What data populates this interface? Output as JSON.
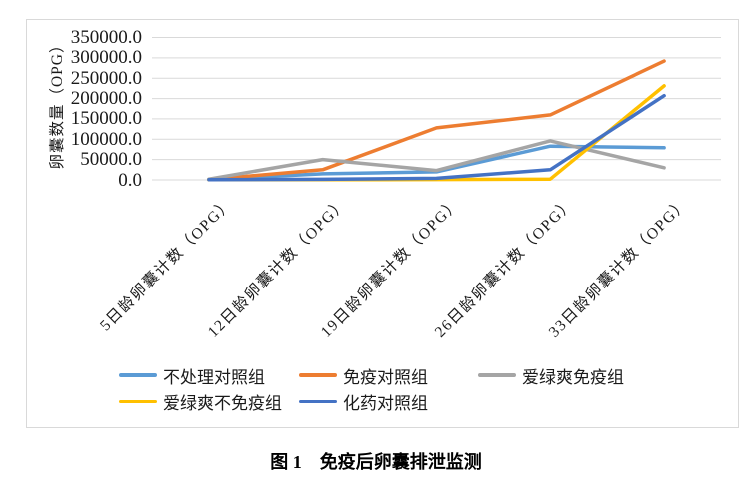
{
  "chart_data": {
    "type": "line",
    "categories": [
      "5日龄卵囊计数（OPG）",
      "12日龄卵囊计数（OPG）",
      "19日龄卵囊计数（OPG）",
      "26日龄卵囊计数（OPG）",
      "33日龄卵囊计数（OPG）"
    ],
    "series": [
      {
        "name": "不处理对照组",
        "color": "#5B9BD5",
        "values": [
          1000,
          15000,
          20000,
          83000,
          79000
        ]
      },
      {
        "name": "免疫对照组",
        "color": "#ED7D31",
        "values": [
          1000,
          25000,
          128000,
          160000,
          292000
        ]
      },
      {
        "name": "爱绿爽免疫组",
        "color": "#A5A5A5",
        "values": [
          2000,
          50000,
          23000,
          96000,
          30000
        ]
      },
      {
        "name": "爱绿爽不免疫组",
        "color": "#FFC000",
        "values": [
          500,
          500,
          1000,
          2000,
          231000
        ]
      },
      {
        "name": "化药对照组",
        "color": "#4472C4",
        "values": [
          500,
          1500,
          4000,
          25000,
          207000
        ]
      }
    ],
    "ylabel": "卵囊数量（OPG）",
    "yticks": [
      "350000.0",
      "300000.0",
      "250000.0",
      "200000.0",
      "150000.0",
      "100000.0",
      "50000.0",
      "0.0"
    ],
    "ylim": [
      0,
      350000
    ],
    "grid": true,
    "legend_position": "bottom",
    "gridline_color": "#d9d9d9"
  },
  "caption": "图 1　免疫后卵囊排泄监测"
}
